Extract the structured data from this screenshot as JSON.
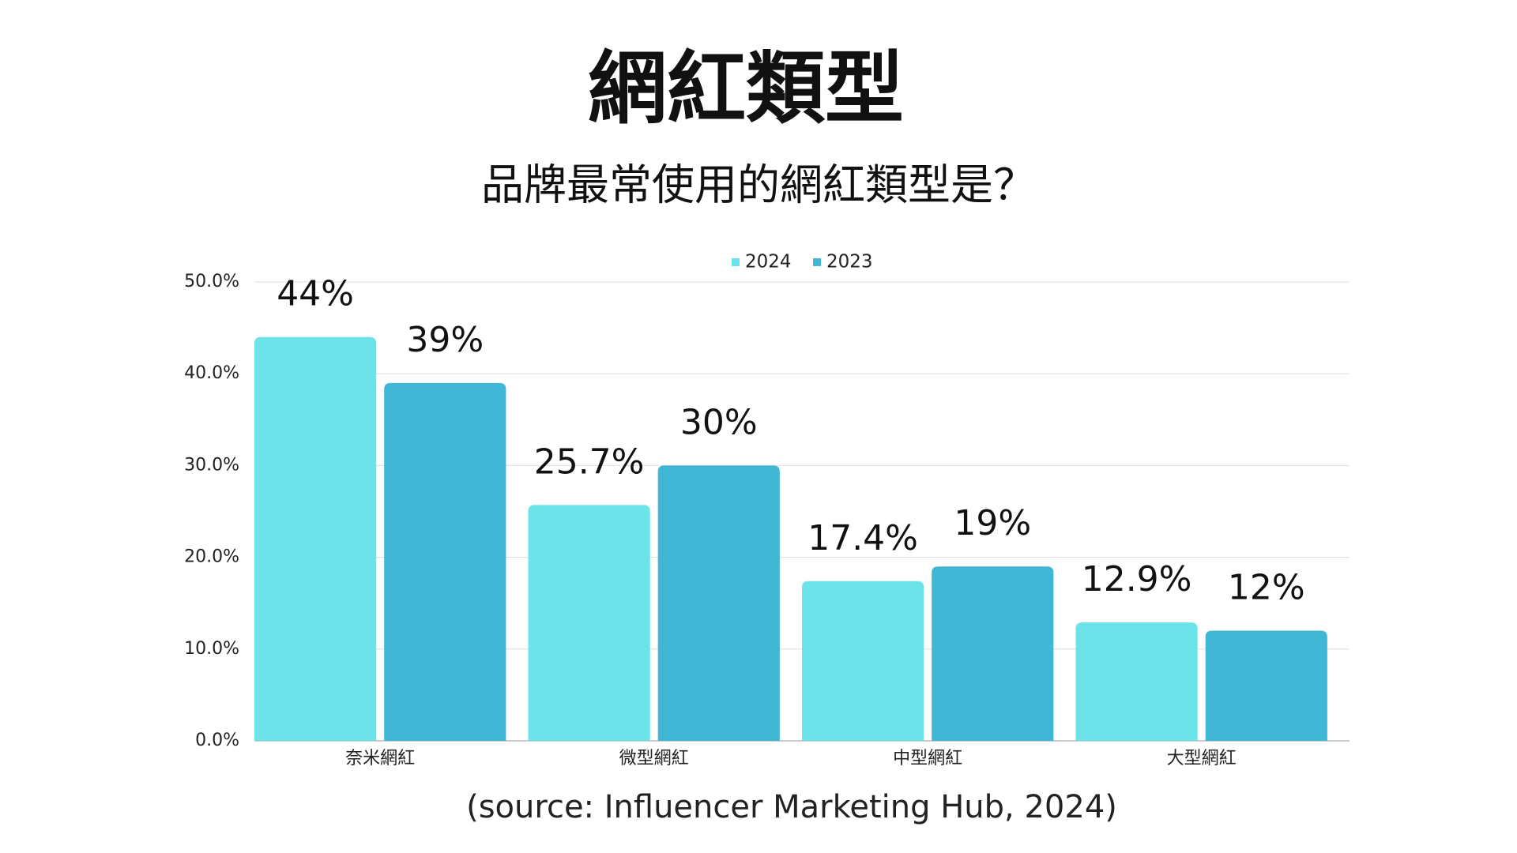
{
  "chart_data": {
    "type": "bar",
    "title": "網紅類型",
    "subtitle": "品牌最常使用的網紅類型是？",
    "source": "(source: Influencer Marketing Hub, 2024)",
    "categories": [
      "奈米網紅",
      "微型網紅",
      "中型網紅",
      "大型網紅"
    ],
    "series": [
      {
        "name": "2024",
        "color": "#6ce3e8",
        "values": [
          44,
          25.7,
          17.4,
          12.9
        ],
        "value_labels": [
          "44%",
          "25.7%",
          "17.4%",
          "12.9%"
        ]
      },
      {
        "name": "2023",
        "color": "#41b7d6",
        "values": [
          39,
          30,
          19,
          12
        ],
        "value_labels": [
          "39%",
          "30%",
          "19%",
          "12%"
        ]
      }
    ],
    "ylim": [
      0,
      50
    ],
    "yticks": [
      {
        "value": 0,
        "label": "0.0%"
      },
      {
        "value": 10,
        "label": "10.0%"
      },
      {
        "value": 20,
        "label": "20.0%"
      },
      {
        "value": 30,
        "label": "30.0%"
      },
      {
        "value": 40,
        "label": "40.0%"
      },
      {
        "value": 50,
        "label": "50.0%"
      }
    ],
    "grid": true,
    "legend": "top"
  }
}
